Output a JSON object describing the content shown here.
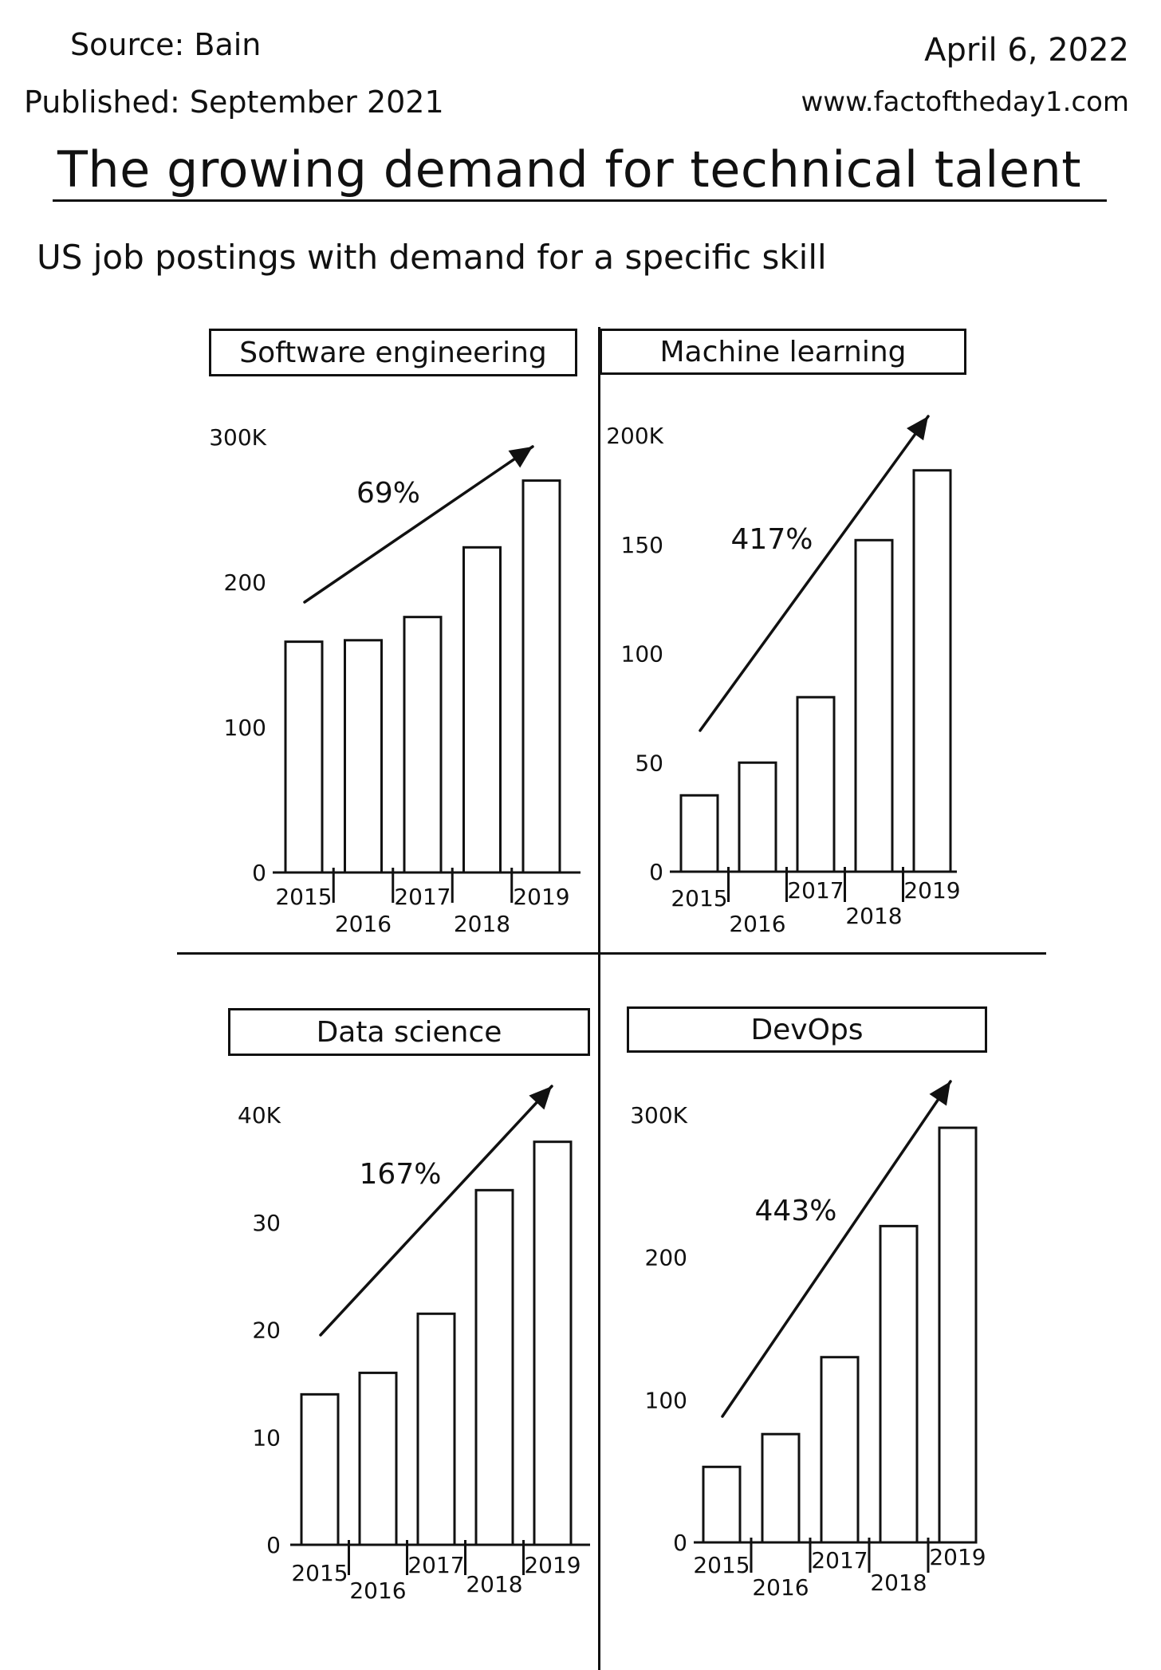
{
  "header": {
    "source": "Source: Bain",
    "published": "Published: September 2021",
    "date": "April 6, 2022",
    "website": "www.factoftheday1.com"
  },
  "title": "The growing demand for technical talent",
  "subtitle": "US job postings with demand for a specific skill",
  "chart_data": [
    {
      "type": "bar",
      "title": "Software engineering",
      "categories": [
        "2015",
        "2016",
        "2017",
        "2018",
        "2019"
      ],
      "values": [
        159,
        160,
        176,
        224,
        270
      ],
      "ylim": [
        0,
        300
      ],
      "yticks": [
        0,
        100,
        200,
        300
      ],
      "yticklabels": [
        "0",
        "100",
        "200",
        "300K"
      ],
      "annotation": "69%",
      "grid": false
    },
    {
      "type": "bar",
      "title": "Machine learning",
      "categories": [
        "2015",
        "2016",
        "2017",
        "2018",
        "2019"
      ],
      "values": [
        35,
        50,
        80,
        152,
        184
      ],
      "ylim": [
        0,
        200
      ],
      "yticks": [
        0,
        50,
        100,
        150,
        200
      ],
      "yticklabels": [
        "0",
        "50",
        "100",
        "150",
        "200K"
      ],
      "annotation": "417%",
      "grid": false
    },
    {
      "type": "bar",
      "title": "Data science",
      "categories": [
        "2015",
        "2016",
        "2017",
        "2018",
        "2019"
      ],
      "values": [
        14,
        16,
        21.5,
        33,
        37.5
      ],
      "ylim": [
        0,
        40
      ],
      "yticks": [
        0,
        10,
        20,
        30,
        40
      ],
      "yticklabels": [
        "0",
        "10",
        "20",
        "30",
        "40K"
      ],
      "annotation": "167%",
      "grid": false
    },
    {
      "type": "bar",
      "title": "DevOps",
      "categories": [
        "2015",
        "2016",
        "2017",
        "2018",
        "2019"
      ],
      "values": [
        53,
        76,
        130,
        222,
        291
      ],
      "ylim": [
        0,
        300
      ],
      "yticks": [
        0,
        100,
        200,
        300
      ],
      "yticklabels": [
        "0",
        "100",
        "200",
        "300K"
      ],
      "annotation": "443%",
      "grid": false
    }
  ]
}
